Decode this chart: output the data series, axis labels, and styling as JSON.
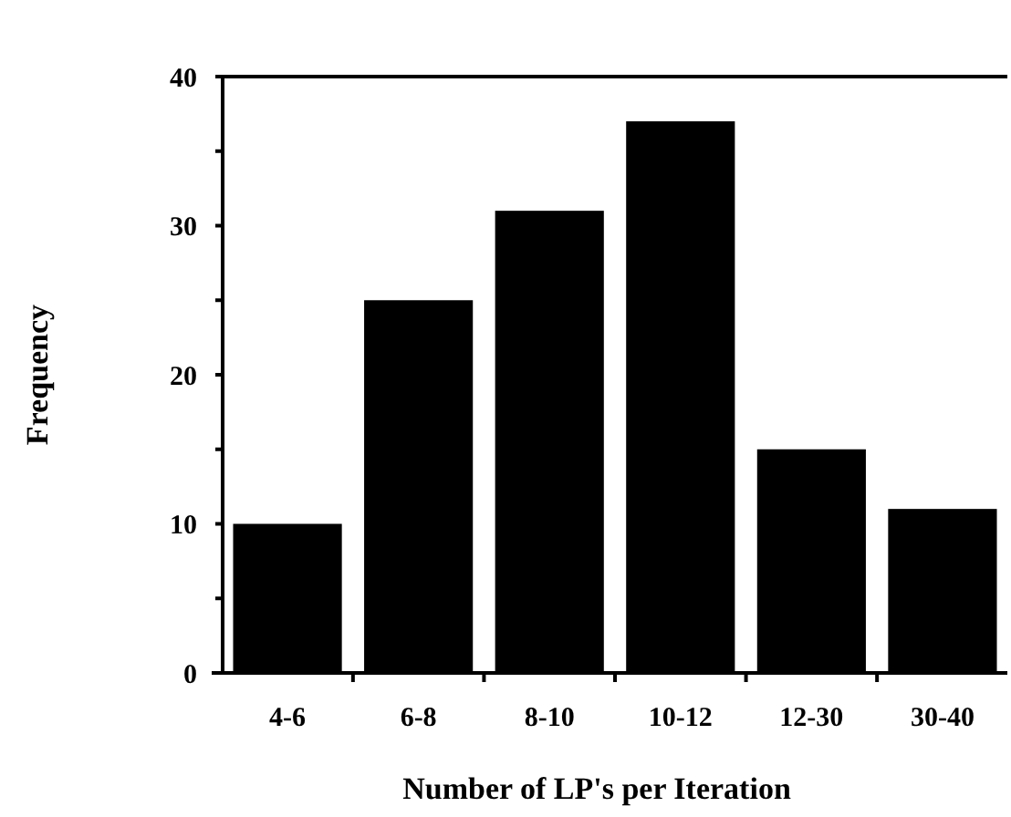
{
  "chart_data": {
    "type": "bar",
    "xlabel": "Number of LP's per Iteration",
    "ylabel": "Frequency",
    "categories": [
      "4-6",
      "6-8",
      "8-10",
      "10-12",
      "12-30",
      "30-40"
    ],
    "values": [
      10,
      25,
      31,
      37,
      15,
      11
    ],
    "color": "#000000",
    "ylim": [
      0,
      40
    ],
    "yticks": [
      0,
      {
        "value": 5,
        "label": null
      },
      10,
      {
        "value": 15,
        "label": null
      },
      20,
      {
        "value": 25,
        "label": null
      },
      30,
      {
        "value": 35,
        "label": null
      },
      40
    ],
    "grid": false
  }
}
